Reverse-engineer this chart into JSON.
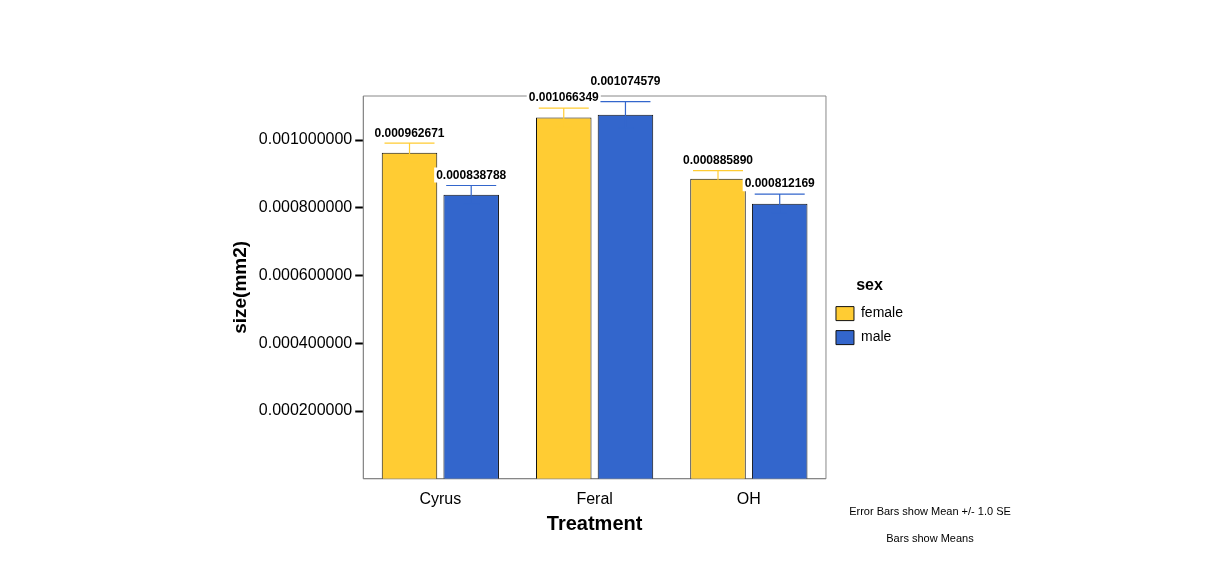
{
  "chart_data": {
    "type": "bar",
    "categories": [
      "Cyrus",
      "Feral",
      "OH"
    ],
    "xlabel": "Treatment",
    "ylabel": "size(mm2)",
    "legend_title": "sex",
    "series": [
      {
        "name": "female",
        "color": "#ffcc33",
        "values": [
          0.000962671,
          0.001066349,
          0.00088589
        ],
        "value_labels": [
          "0.000962671",
          "0.001066349",
          "0.000885890"
        ],
        "errors": [
          2.8e-05,
          2.8e-05,
          2.4e-05
        ]
      },
      {
        "name": "male",
        "color": "#3366cc",
        "values": [
          0.000838788,
          0.001074579,
          0.000812169
        ],
        "value_labels": [
          "0.000838788",
          "0.001074579",
          "0.000812169"
        ],
        "errors": [
          2.7e-05,
          3.9e-05,
          2.8e-05
        ]
      }
    ],
    "ylim": [
      0,
      0.00113
    ],
    "yticks": [
      {
        "value": 0.0002,
        "label": "0.000200000"
      },
      {
        "value": 0.0004,
        "label": "0.000400000"
      },
      {
        "value": 0.0006,
        "label": "0.000600000"
      },
      {
        "value": 0.0008,
        "label": "0.000800000"
      },
      {
        "value": 0.001,
        "label": "0.001000000"
      }
    ],
    "grid": false,
    "legend": "right",
    "annotations": [
      "Error Bars show Mean +/- 1.0 SE",
      "Bars show Means"
    ]
  }
}
